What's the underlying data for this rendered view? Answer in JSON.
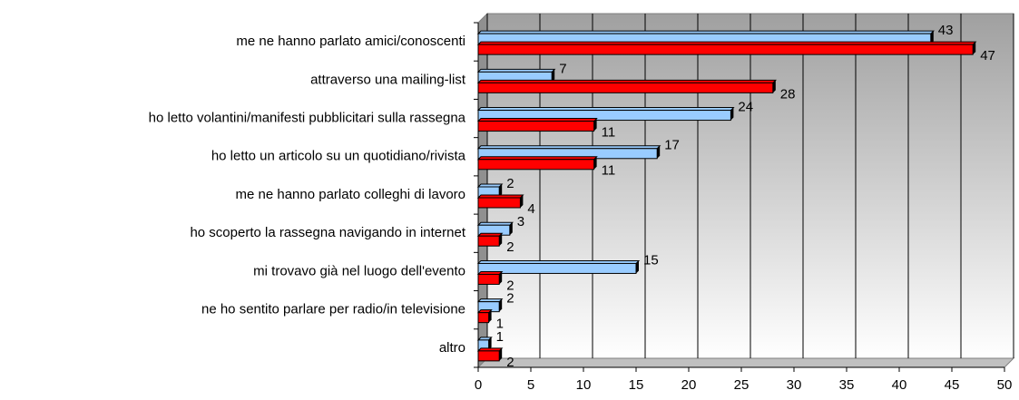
{
  "chart_data": {
    "type": "bar",
    "orientation": "horizontal",
    "categories": [
      "me ne hanno parlato amici/conoscenti",
      "attraverso una mailing-list",
      "ho letto volantini/manifesti pubblicitari sulla rassegna",
      "ho letto un articolo su un quotidiano/rivista",
      "me ne hanno parlato colleghi di lavoro",
      "ho scoperto la rassegna navigando in internet",
      "mi trovavo già nel luogo dell'evento",
      "ne ho sentito parlare per radio/in televisione",
      "altro"
    ],
    "series": [
      {
        "color": "#99ccff",
        "values": [
          43,
          7,
          24,
          17,
          2,
          3,
          15,
          2,
          1
        ]
      },
      {
        "color": "#ff0000",
        "values": [
          47,
          28,
          11,
          11,
          4,
          2,
          2,
          1,
          2
        ]
      }
    ],
    "xlim": [
      0,
      50
    ],
    "xticks": [
      0,
      5,
      10,
      15,
      20,
      25,
      30,
      35,
      40,
      45,
      50
    ],
    "grid": true
  }
}
